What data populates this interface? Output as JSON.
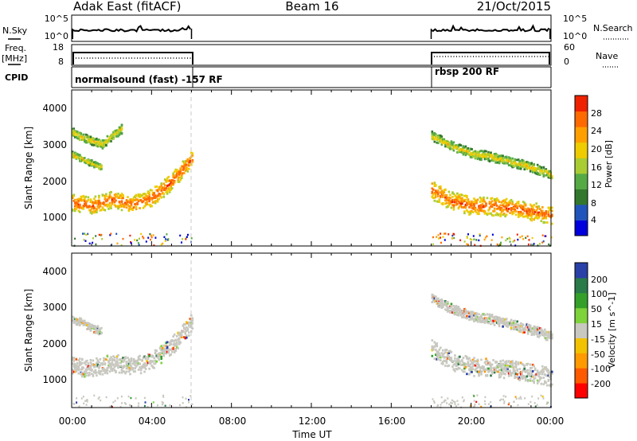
{
  "header": {
    "station": "Adak East (fitACF)",
    "beam": "Beam 16",
    "date": "21/Oct/2015"
  },
  "top_panels": {
    "nsky_label": "N.Sky",
    "nsky_ticks": [
      "10^5",
      "10^0"
    ],
    "nsearch_label": "N.Search",
    "nsearch_ticks": [
      "10^5",
      "10^0"
    ],
    "freq_label_1": "Freq.",
    "freq_label_2": "[MHz]",
    "freq_ticks": [
      "18",
      "8"
    ],
    "nave_label": "Nave",
    "nave_ticks": [
      "60",
      "0"
    ],
    "cpid_label": "CPID",
    "cpid_segments": [
      {
        "label": "normalsound (fast) -157 RF",
        "start": "00:00",
        "end": "06:00"
      },
      {
        "label": "rbsp 200 RF",
        "start": "18:00",
        "end": "24:00"
      }
    ]
  },
  "colors": {
    "power_scale": [
      "#0000dd",
      "#2255bb",
      "#33772e",
      "#55aa44",
      "#aacc33",
      "#eecc00",
      "#ffa000",
      "#ff6a00",
      "#ee2200"
    ],
    "velocity_scale": [
      "#ff0000",
      "#ff5a00",
      "#ff9a00",
      "#f2c200",
      "#c8c8c0",
      "#7ed23a",
      "#34a02a",
      "#2a7a4a",
      "#2a3fa8"
    ],
    "gray_scatter": "#c8c8c0"
  },
  "chart_data": [
    {
      "type": "heatmap",
      "title": "Power",
      "ylabel": "Slant Range [km]",
      "colorbar_label": "Power [dB]",
      "colorbar_ticks": [
        "28",
        "24",
        "20",
        "16",
        "12",
        "8",
        "4"
      ],
      "ylim": [
        180,
        4600
      ],
      "yticks": [
        "4000",
        "3000",
        "2000",
        "1000"
      ],
      "xlim": [
        0,
        24
      ],
      "grid": false,
      "bands": [
        {
          "name": "",
          "start_h": 0.0,
          "end_h": 6.0,
          "x": [
            0.0,
            1.0,
            2.0,
            3.0,
            4.0,
            5.0,
            6.0
          ],
          "y": [
            1400,
            1320,
            1500,
            1350,
            1550,
            2000,
            2650
          ],
          "width_km": 300,
          "value_db": 24
        },
        {
          "name": "",
          "start_h": 0.0,
          "end_h": 2.5,
          "x": [
            0.0,
            0.5,
            1.0,
            1.5,
            2.0,
            2.5
          ],
          "y": [
            3400,
            3250,
            3150,
            3050,
            3300,
            3500
          ],
          "width_km": 160,
          "value_db": 20
        },
        {
          "name": "",
          "start_h": 0.0,
          "end_h": 1.5,
          "x": [
            0.0,
            0.5,
            1.0,
            1.5
          ],
          "y": [
            2750,
            2650,
            2500,
            2400
          ],
          "width_km": 120,
          "value_db": 18
        },
        {
          "name": "",
          "start_h": 18.0,
          "end_h": 24.0,
          "x": [
            18.0,
            19.0,
            20.0,
            21.0,
            22.0,
            23.0,
            24.0
          ],
          "y": [
            1750,
            1450,
            1300,
            1300,
            1250,
            1150,
            1050
          ],
          "width_km": 320,
          "value_db": 24
        },
        {
          "name": "",
          "start_h": 18.0,
          "end_h": 24.0,
          "x": [
            18.0,
            19.0,
            20.0,
            21.0,
            22.0,
            23.0,
            24.0
          ],
          "y": [
            3300,
            3000,
            2800,
            2700,
            2550,
            2400,
            2200
          ],
          "width_km": 170,
          "value_db": 20
        }
      ]
    },
    {
      "type": "heatmap",
      "title": "Velocity",
      "ylabel": "Slant Range [km]",
      "xlabel": "Time UT",
      "colorbar_label": "Velocity [m s^-1]",
      "colorbar_ticks": [
        "200",
        "100",
        "50",
        "15",
        "-15",
        "-50",
        "-100",
        "-200"
      ],
      "ylim": [
        180,
        4600
      ],
      "yticks": [
        "4000",
        "3000",
        "2000",
        "1000"
      ],
      "xlim": [
        0,
        24
      ],
      "xticks": [
        "00:00",
        "04:00",
        "08:00",
        "12:00",
        "16:00",
        "20:00",
        "00:00"
      ],
      "grid": false,
      "bands": [
        {
          "name": "",
          "start_h": 0.0,
          "end_h": 6.0,
          "x": [
            0.0,
            1.0,
            2.0,
            3.0,
            4.0,
            5.0,
            6.0
          ],
          "y": [
            1350,
            1300,
            1450,
            1350,
            1500,
            1950,
            2600
          ],
          "width_km": 320,
          "value": 0
        },
        {
          "name": "",
          "start_h": 0.0,
          "end_h": 1.5,
          "x": [
            0.0,
            0.5,
            1.0,
            1.5
          ],
          "y": [
            2700,
            2600,
            2450,
            2350
          ],
          "width_km": 140,
          "value": 0
        },
        {
          "name": "",
          "start_h": 18.0,
          "end_h": 24.0,
          "x": [
            18.0,
            19.0,
            20.0,
            21.0,
            22.0,
            23.0,
            24.0
          ],
          "y": [
            1850,
            1500,
            1350,
            1300,
            1250,
            1150,
            1050
          ],
          "width_km": 330,
          "value": 0
        },
        {
          "name": "",
          "start_h": 18.0,
          "end_h": 24.0,
          "x": [
            18.0,
            19.0,
            20.0,
            21.0,
            22.0,
            23.0,
            24.0
          ],
          "y": [
            3300,
            3000,
            2800,
            2700,
            2550,
            2400,
            2200
          ],
          "width_km": 180,
          "value": 0
        }
      ]
    }
  ]
}
